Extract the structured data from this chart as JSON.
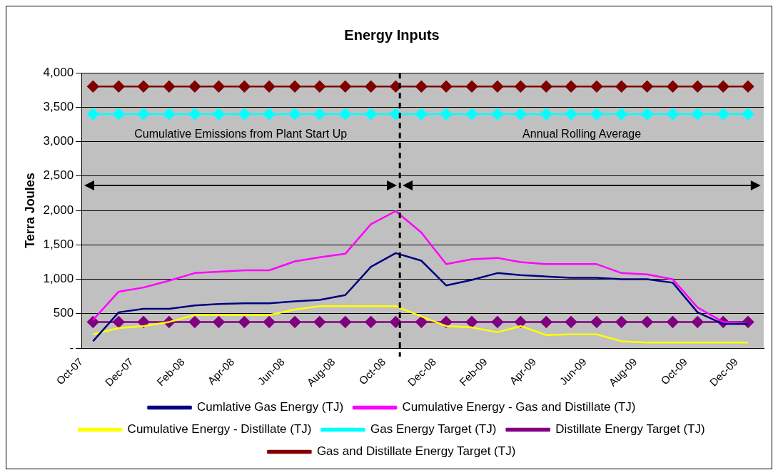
{
  "chart_data": {
    "type": "line",
    "title": "Energy Inputs",
    "ylabel": "Terra Joules",
    "x": [
      "2007-10-15",
      "2007-11-15",
      "2007-12-15",
      "2008-01-15",
      "2008-02-15",
      "2008-03-15",
      "2008-04-15",
      "2008-05-15",
      "2008-06-15",
      "2008-07-15",
      "2008-08-15",
      "2008-09-15",
      "2008-10-15",
      "2008-11-15",
      "2008-12-15",
      "2009-01-15",
      "2009-02-15",
      "2009-03-15",
      "2009-04-15",
      "2009-05-15",
      "2009-06-15",
      "2009-07-15",
      "2009-08-15",
      "2009-09-15",
      "2009-10-15",
      "2009-11-15",
      "2009-12-15"
    ],
    "series": [
      {
        "name": "Cumlative Gas Energy (TJ)",
        "color": "#000080",
        "marker": "none",
        "values": [
          100,
          520,
          570,
          570,
          620,
          640,
          650,
          650,
          680,
          700,
          770,
          1180,
          1380,
          1270,
          910,
          990,
          1090,
          1060,
          1040,
          1020,
          1020,
          1000,
          1000,
          950,
          520,
          350,
          350
        ]
      },
      {
        "name": "Cumulative Energy - Gas and Distillate (TJ)",
        "color": "#ff00ff",
        "marker": "none",
        "values": [
          410,
          820,
          880,
          980,
          1090,
          1110,
          1130,
          1130,
          1260,
          1320,
          1370,
          1800,
          1990,
          1680,
          1220,
          1290,
          1310,
          1250,
          1220,
          1220,
          1220,
          1090,
          1070,
          1000,
          590,
          380,
          350
        ]
      },
      {
        "name": "Cumulative Energy - Distillate (TJ)",
        "color": "#ffff00",
        "marker": "none",
        "values": [
          200,
          290,
          320,
          380,
          480,
          480,
          480,
          480,
          560,
          610,
          610,
          610,
          610,
          460,
          320,
          300,
          230,
          320,
          190,
          200,
          200,
          100,
          80,
          80,
          80,
          80,
          80
        ]
      },
      {
        "name": "Gas Energy Target (TJ)",
        "color": "#00ffff",
        "marker": "diamond",
        "values": [
          3400,
          3400,
          3400,
          3400,
          3400,
          3400,
          3400,
          3400,
          3400,
          3400,
          3400,
          3400,
          3400,
          3400,
          3400,
          3400,
          3400,
          3400,
          3400,
          3400,
          3400,
          3400,
          3400,
          3400,
          3400,
          3400,
          3400
        ]
      },
      {
        "name": "Distillate Energy Target (TJ)",
        "color": "#800080",
        "marker": "diamond",
        "values": [
          380,
          380,
          380,
          380,
          380,
          380,
          380,
          380,
          380,
          380,
          380,
          380,
          380,
          380,
          380,
          380,
          380,
          380,
          380,
          380,
          380,
          380,
          380,
          380,
          380,
          380,
          380
        ]
      },
      {
        "name": "Gas and Distillate Energy Target (TJ)",
        "color": "#800000",
        "marker": "diamond",
        "values": [
          3800,
          3800,
          3800,
          3800,
          3800,
          3800,
          3800,
          3800,
          3800,
          3800,
          3800,
          3800,
          3800,
          3800,
          3800,
          3800,
          3800,
          3800,
          3800,
          3800,
          3800,
          3800,
          3800,
          3800,
          3800,
          3800,
          3800
        ]
      }
    ],
    "xlim": [
      "2007-10-01",
      "2010-01-03"
    ],
    "xticks": [
      {
        "value": "2007-10-01",
        "label": "Oct-07"
      },
      {
        "value": "2007-12-01",
        "label": "Dec-07"
      },
      {
        "value": "2008-02-01",
        "label": "Feb-08"
      },
      {
        "value": "2008-04-01",
        "label": "Apr-08"
      },
      {
        "value": "2008-06-01",
        "label": "Jun-08"
      },
      {
        "value": "2008-08-01",
        "label": "Aug-08"
      },
      {
        "value": "2008-10-01",
        "label": "Oct-08"
      },
      {
        "value": "2008-12-01",
        "label": "Dec-08"
      },
      {
        "value": "2009-02-01",
        "label": "Feb-09"
      },
      {
        "value": "2009-04-01",
        "label": "Apr-09"
      },
      {
        "value": "2009-06-01",
        "label": "Jun-09"
      },
      {
        "value": "2009-08-01",
        "label": "Aug-09"
      },
      {
        "value": "2009-10-01",
        "label": "Oct-09"
      },
      {
        "value": "2009-12-01",
        "label": "Dec-09"
      }
    ],
    "ylim": [
      0,
      4000
    ],
    "yticks": [
      {
        "value": 0,
        "label": "-"
      },
      500,
      {
        "value": 1000,
        "label": "1,000"
      },
      {
        "value": 1500,
        "label": "1,500"
      },
      {
        "value": 2000,
        "label": "2,000"
      },
      {
        "value": 2500,
        "label": "2,500"
      },
      {
        "value": 3000,
        "label": "3,000"
      },
      {
        "value": 3500,
        "label": "3,500"
      },
      {
        "value": 4000,
        "label": "4,000"
      }
    ],
    "ref_lines": [
      {
        "axis": "x",
        "value": "2008-10-20",
        "color": "#000000",
        "line_style": "dashed"
      }
    ],
    "annotations": [
      "Cumulative Emissions from Plant Start Up",
      "Annual Rolling Average"
    ],
    "grid": "y",
    "legend": "bottom"
  }
}
